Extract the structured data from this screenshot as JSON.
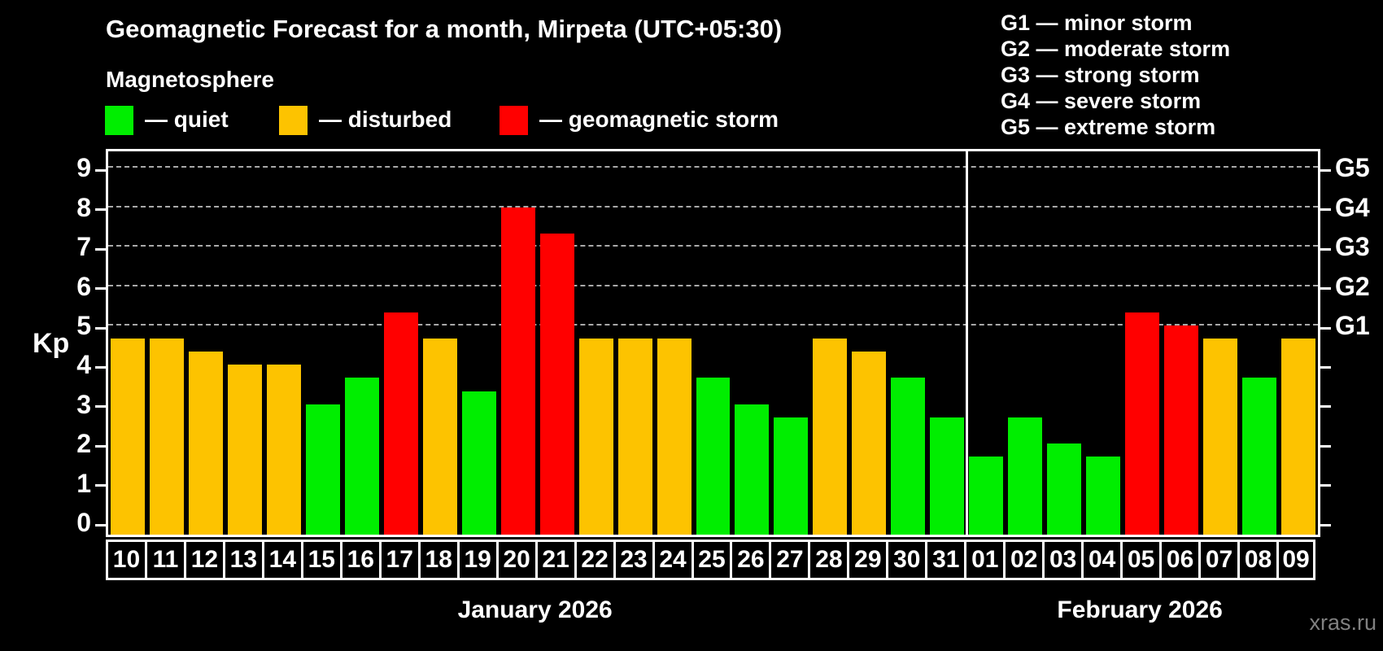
{
  "title": "Geomagnetic Forecast for a month, Mirpeta (UTC+05:30)",
  "legend": {
    "title": "Magnetosphere",
    "items": [
      {
        "label": "— quiet",
        "status": "quiet"
      },
      {
        "label": "— disturbed",
        "status": "disturbed"
      },
      {
        "label": "— geomagnetic storm",
        "status": "storm"
      }
    ]
  },
  "g_scale_legend": [
    "G1 — minor storm",
    "G2 — moderate storm",
    "G3 — strong storm",
    "G4 — severe storm",
    "G5 — extreme storm"
  ],
  "watermark": "xras.ru",
  "colors": {
    "quiet": "#00ee00",
    "disturbed": "#fdc300",
    "storm": "#ff0000",
    "grid": "#a9a9a9",
    "frame": "#ffffff",
    "background": "#000000",
    "watermark_text": "#818181"
  },
  "chart_data": {
    "type": "bar",
    "title": "Geomagnetic Forecast for a month, Mirpeta (UTC+05:30)",
    "ylabel": "Kp",
    "ylim": [
      0,
      9
    ],
    "yticks": [
      0,
      1,
      2,
      3,
      4,
      5,
      6,
      7,
      8,
      9
    ],
    "gridlines_at": [
      5,
      6,
      7,
      8,
      9
    ],
    "grid": "dashed-horizontal",
    "legend_position": "top-left",
    "right_axis_labels": [
      {
        "label": "G1",
        "kp": 5
      },
      {
        "label": "G2",
        "kp": 6
      },
      {
        "label": "G3",
        "kp": 7
      },
      {
        "label": "G4",
        "kp": 8
      },
      {
        "label": "G5",
        "kp": 9
      }
    ],
    "months": [
      {
        "label": "January 2026",
        "days": [
          {
            "day": "10",
            "kp": 4.67,
            "status": "disturbed"
          },
          {
            "day": "11",
            "kp": 4.67,
            "status": "disturbed"
          },
          {
            "day": "12",
            "kp": 4.33,
            "status": "disturbed"
          },
          {
            "day": "13",
            "kp": 4.0,
            "status": "disturbed"
          },
          {
            "day": "14",
            "kp": 4.0,
            "status": "disturbed"
          },
          {
            "day": "15",
            "kp": 3.0,
            "status": "quiet"
          },
          {
            "day": "16",
            "kp": 3.67,
            "status": "quiet"
          },
          {
            "day": "17",
            "kp": 5.33,
            "status": "storm"
          },
          {
            "day": "18",
            "kp": 4.67,
            "status": "disturbed"
          },
          {
            "day": "19",
            "kp": 3.33,
            "status": "quiet"
          },
          {
            "day": "20",
            "kp": 8.0,
            "status": "storm"
          },
          {
            "day": "21",
            "kp": 7.33,
            "status": "storm"
          },
          {
            "day": "22",
            "kp": 4.67,
            "status": "disturbed"
          },
          {
            "day": "23",
            "kp": 4.67,
            "status": "disturbed"
          },
          {
            "day": "24",
            "kp": 4.67,
            "status": "disturbed"
          },
          {
            "day": "25",
            "kp": 3.67,
            "status": "quiet"
          },
          {
            "day": "26",
            "kp": 3.0,
            "status": "quiet"
          },
          {
            "day": "27",
            "kp": 2.67,
            "status": "quiet"
          },
          {
            "day": "28",
            "kp": 4.67,
            "status": "disturbed"
          },
          {
            "day": "29",
            "kp": 4.33,
            "status": "disturbed"
          },
          {
            "day": "30",
            "kp": 3.67,
            "status": "quiet"
          },
          {
            "day": "31",
            "kp": 2.67,
            "status": "quiet"
          }
        ]
      },
      {
        "label": "February 2026",
        "days": [
          {
            "day": "01",
            "kp": 1.67,
            "status": "quiet"
          },
          {
            "day": "02",
            "kp": 2.67,
            "status": "quiet"
          },
          {
            "day": "03",
            "kp": 2.0,
            "status": "quiet"
          },
          {
            "day": "04",
            "kp": 1.67,
            "status": "quiet"
          },
          {
            "day": "05",
            "kp": 5.33,
            "status": "storm"
          },
          {
            "day": "06",
            "kp": 5.0,
            "status": "storm"
          },
          {
            "day": "07",
            "kp": 4.67,
            "status": "disturbed"
          },
          {
            "day": "08",
            "kp": 3.67,
            "status": "quiet"
          },
          {
            "day": "09",
            "kp": 4.67,
            "status": "disturbed"
          }
        ]
      }
    ]
  }
}
